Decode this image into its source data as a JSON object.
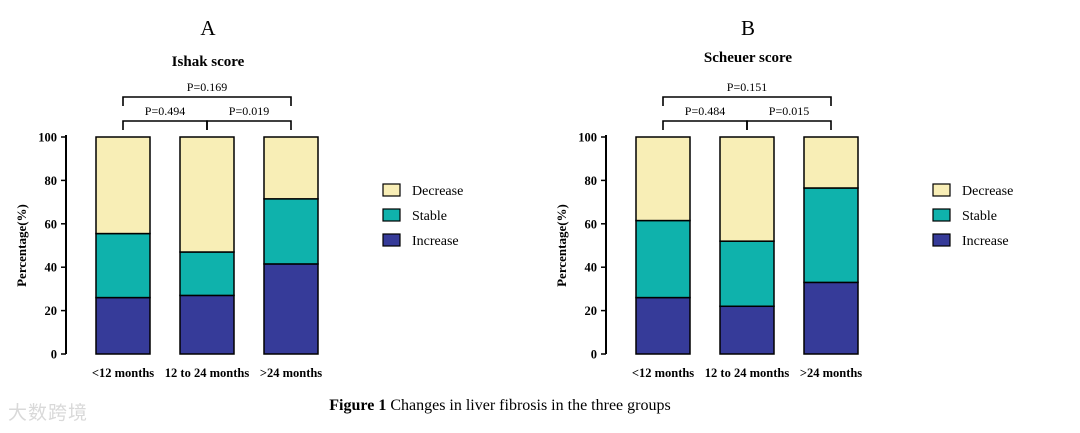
{
  "figure": {
    "caption_label": "Figure 1",
    "caption_text": "Changes in liver fibrosis in the three groups",
    "watermark": "大数跨境"
  },
  "colors": {
    "Decrease": "#f8eeb6",
    "Stable": "#0fb2ac",
    "Increase": "#363b99"
  },
  "chart_data": [
    {
      "type": "bar",
      "stacked": true,
      "panel_label": "A",
      "title": "Ishak score",
      "xlabel": "",
      "ylabel": "Percentage(%)",
      "ylim": [
        0,
        100
      ],
      "yticks": [
        0,
        20,
        40,
        60,
        80,
        100
      ],
      "categories": [
        "<12 months",
        "12 to 24 months",
        ">24 months"
      ],
      "legend": [
        "Decrease",
        "Stable",
        "Increase"
      ],
      "legend_position": "right",
      "grid": false,
      "series": [
        {
          "name": "Increase",
          "values": [
            26,
            27,
            41.5
          ]
        },
        {
          "name": "Stable",
          "values": [
            29.5,
            20,
            30
          ]
        },
        {
          "name": "Decrease",
          "values": [
            44.5,
            53,
            28.5
          ]
        }
      ],
      "annotations": [
        {
          "from": 0,
          "to": 1,
          "label": "P=0.494",
          "level": 1
        },
        {
          "from": 1,
          "to": 2,
          "label": "P=0.019",
          "level": 1
        },
        {
          "from": 0,
          "to": 2,
          "label": "P=0.169",
          "level": 2
        }
      ]
    },
    {
      "type": "bar",
      "stacked": true,
      "panel_label": "B",
      "title": "Scheuer score",
      "xlabel": "",
      "ylabel": "Percentage(%)",
      "ylim": [
        0,
        100
      ],
      "yticks": [
        0,
        20,
        40,
        60,
        80,
        100
      ],
      "categories": [
        "<12 months",
        "12 to 24 months",
        ">24 months"
      ],
      "legend": [
        "Decrease",
        "Stable",
        "Increase"
      ],
      "legend_position": "right",
      "grid": false,
      "series": [
        {
          "name": "Increase",
          "values": [
            26,
            22,
            33
          ]
        },
        {
          "name": "Stable",
          "values": [
            35.5,
            30,
            43.5
          ]
        },
        {
          "name": "Decrease",
          "values": [
            38.5,
            48,
            23.5
          ]
        }
      ],
      "annotations": [
        {
          "from": 0,
          "to": 1,
          "label": "P=0.484",
          "level": 1
        },
        {
          "from": 1,
          "to": 2,
          "label": "P=0.015",
          "level": 1
        },
        {
          "from": 0,
          "to": 2,
          "label": "P=0.151",
          "level": 2
        }
      ]
    }
  ]
}
